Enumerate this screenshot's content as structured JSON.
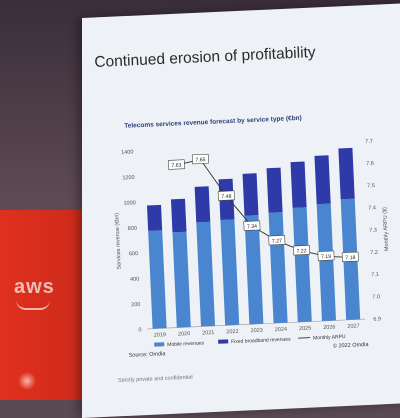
{
  "venue": {
    "sponsor_logo": "aws"
  },
  "slide": {
    "title": "Continued erosion of profitability",
    "confidentiality": "Strictly private and confidential"
  },
  "chart_data": {
    "type": "bar",
    "title": "Telecoms services revenue forecast by service type (€bn)",
    "categories": [
      "2019",
      "2020",
      "2021",
      "2022",
      "2023",
      "2024",
      "2025",
      "2026",
      "2027"
    ],
    "series": [
      {
        "name": "Mobile revenues",
        "color": "#4a86d0",
        "values": [
          770,
          750,
          820,
          830,
          855,
          870,
          900,
          920,
          950
        ]
      },
      {
        "name": "Fixed broadband revenues",
        "color": "#2e3aa8",
        "values": [
          200,
          260,
          280,
          320,
          330,
          350,
          360,
          380,
          400
        ]
      }
    ],
    "line_series": {
      "name": "Monthly ARPU",
      "axis": "right",
      "values": [
        null,
        7.63,
        7.65,
        7.48,
        7.34,
        7.27,
        7.22,
        7.19,
        7.18
      ],
      "labels": [
        "",
        "7.63",
        "7.65",
        "7.48",
        "7.34",
        "7.27",
        "7.22",
        "7.19",
        "7.18"
      ]
    },
    "ylabel_left": "Services revenue (€bn)",
    "ylabel_right": "Monthly ARPU ($)",
    "ylim_left": [
      0,
      1400
    ],
    "yticks_left": [
      "0",
      "200",
      "400",
      "600",
      "800",
      "1000",
      "1200",
      "1400"
    ],
    "ylim_right": [
      6.9,
      7.7
    ],
    "yticks_right": [
      "6.9",
      "7.0",
      "7.1",
      "7.2",
      "7.3",
      "7.4",
      "7.5",
      "7.6",
      "7.7"
    ],
    "legend_position": "bottom",
    "source": "Source: Omdia",
    "copyright": "© 2022 Omdia",
    "grid": false
  }
}
